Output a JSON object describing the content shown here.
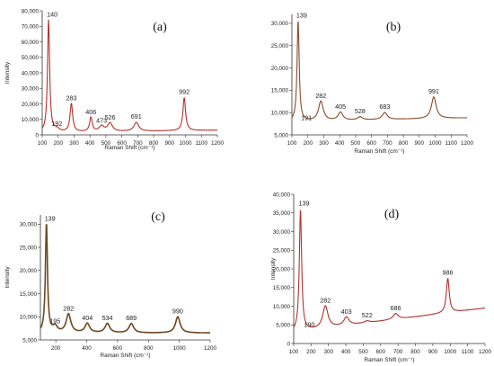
{
  "figure": {
    "panels": [
      "(a)",
      "(b)",
      "(c)",
      "(d)"
    ]
  },
  "chart_data": [
    {
      "type": "line",
      "panel_label": "(a)",
      "xlabel": "Raman Shift (cm⁻¹)",
      "ylabel": "Intensity",
      "xlim": [
        100,
        1200
      ],
      "ylim": [
        0,
        80000
      ],
      "x_ticks": [
        100,
        200,
        300,
        400,
        500,
        600,
        700,
        800,
        900,
        1000,
        1100,
        1200
      ],
      "x_tick_labels": [
        "100",
        "200",
        "300",
        "400",
        "500",
        "600",
        "700",
        "800",
        "900",
        "1000",
        "1100",
        "1200"
      ],
      "y_ticks": [
        0,
        10000,
        20000,
        30000,
        40000,
        50000,
        60000,
        70000,
        80000
      ],
      "y_tick_labels": [
        "0",
        "10,000",
        "20,000",
        "30,000",
        "40,000",
        "50,000",
        "60,000",
        "70,000",
        "80,000"
      ],
      "line_color": "#b3322e",
      "peaks": [
        {
          "x": 140,
          "y": 74000,
          "label": "140"
        },
        {
          "x": 192,
          "y": 3500,
          "label": "192"
        },
        {
          "x": 283,
          "y": 20000,
          "label": "283"
        },
        {
          "x": 406,
          "y": 11000,
          "label": "406"
        },
        {
          "x": 473,
          "y": 5500,
          "label": "473"
        },
        {
          "x": 526,
          "y": 7500,
          "label": "526"
        },
        {
          "x": 691,
          "y": 8000,
          "label": "691"
        },
        {
          "x": 992,
          "y": 24000,
          "label": "992"
        }
      ],
      "baseline": [
        [
          100,
          1500
        ],
        [
          1200,
          3000
        ]
      ]
    },
    {
      "type": "line",
      "panel_label": "(b)",
      "xlabel": "Raman Shift (cm⁻¹)",
      "ylabel": "",
      "xlim": [
        100,
        1200
      ],
      "ylim": [
        5000,
        32000
      ],
      "x_ticks": [
        100,
        200,
        300,
        400,
        500,
        600,
        700,
        800,
        900,
        1000,
        1100,
        1200
      ],
      "x_tick_labels": [
        "100",
        "200",
        "300",
        "400",
        "500",
        "600",
        "700",
        "800",
        "900",
        "1000",
        "1100",
        "1200"
      ],
      "y_ticks": [
        5000,
        10000,
        15000,
        20000,
        25000,
        30000
      ],
      "y_tick_labels": [
        "5,000",
        "10,000",
        "15,000",
        "20,000",
        "25,000",
        "30,000"
      ],
      "line_color": "#8a4a2a",
      "peaks": [
        {
          "x": 139,
          "y": 30500,
          "label": "139"
        },
        {
          "x": 191,
          "y": 7500,
          "label": "191"
        },
        {
          "x": 282,
          "y": 12500,
          "label": "282"
        },
        {
          "x": 405,
          "y": 10000,
          "label": "405"
        },
        {
          "x": 528,
          "y": 9000,
          "label": "528"
        },
        {
          "x": 683,
          "y": 10000,
          "label": "683"
        },
        {
          "x": 991,
          "y": 13500,
          "label": "991"
        }
      ],
      "baseline": [
        [
          100,
          8000
        ],
        [
          1200,
          8800
        ]
      ]
    },
    {
      "type": "line",
      "panel_label": "(c)",
      "xlabel": "Raman Shift (cm⁻¹)",
      "ylabel": "Intensity",
      "xlim": [
        100,
        1200
      ],
      "ylim": [
        5000,
        32000
      ],
      "x_ticks": [
        200,
        400,
        600,
        800,
        1000,
        1200
      ],
      "x_tick_labels": [
        "200",
        "400",
        "600",
        "800",
        "1000",
        "1200"
      ],
      "y_ticks": [
        5000,
        10000,
        15000,
        20000,
        25000,
        30000
      ],
      "y_tick_labels": [
        "5,000",
        "10,000",
        "15,000",
        "20,000",
        "25,000",
        "30,000"
      ],
      "line_color": "#6b4a1f",
      "peaks": [
        {
          "x": 139,
          "y": 30000,
          "label": "139"
        },
        {
          "x": 195,
          "y": 7800,
          "label": "195"
        },
        {
          "x": 282,
          "y": 10500,
          "label": "282"
        },
        {
          "x": 404,
          "y": 8500,
          "label": "404"
        },
        {
          "x": 534,
          "y": 8500,
          "label": "534"
        },
        {
          "x": 689,
          "y": 8500,
          "label": "689"
        },
        {
          "x": 990,
          "y": 10000,
          "label": "990"
        }
      ],
      "baseline": [
        [
          100,
          6500
        ],
        [
          1200,
          6500
        ]
      ]
    },
    {
      "type": "line",
      "panel_label": "(d)",
      "xlabel": "Raman Shift (cm⁻¹)",
      "ylabel": "Intensity",
      "xlim": [
        100,
        1200
      ],
      "ylim": [
        0,
        40000
      ],
      "x_ticks": [
        100,
        200,
        300,
        400,
        500,
        600,
        700,
        800,
        900,
        1000,
        1100,
        1200
      ],
      "x_tick_labels": [
        "100",
        "200",
        "300",
        "400",
        "500",
        "600",
        "700",
        "800",
        "900",
        "1000",
        "1100",
        "1200"
      ],
      "y_ticks": [
        0,
        5000,
        10000,
        15000,
        20000,
        25000,
        30000,
        35000,
        40000
      ],
      "y_tick_labels": [
        "0",
        "5,000",
        "10,000",
        "15,000",
        "20,000",
        "25,000",
        "30,000",
        "35,000",
        "40,000"
      ],
      "line_color": "#b3322e",
      "peaks": [
        {
          "x": 139,
          "y": 36000,
          "label": "139"
        },
        {
          "x": 190,
          "y": 3500,
          "label": "190"
        },
        {
          "x": 282,
          "y": 10000,
          "label": "282"
        },
        {
          "x": 403,
          "y": 7000,
          "label": "403"
        },
        {
          "x": 522,
          "y": 6000,
          "label": "522"
        },
        {
          "x": 686,
          "y": 8000,
          "label": "686"
        },
        {
          "x": 986,
          "y": 17500,
          "label": "986"
        }
      ],
      "baseline": [
        [
          100,
          3000
        ],
        [
          1200,
          9500
        ]
      ]
    }
  ]
}
